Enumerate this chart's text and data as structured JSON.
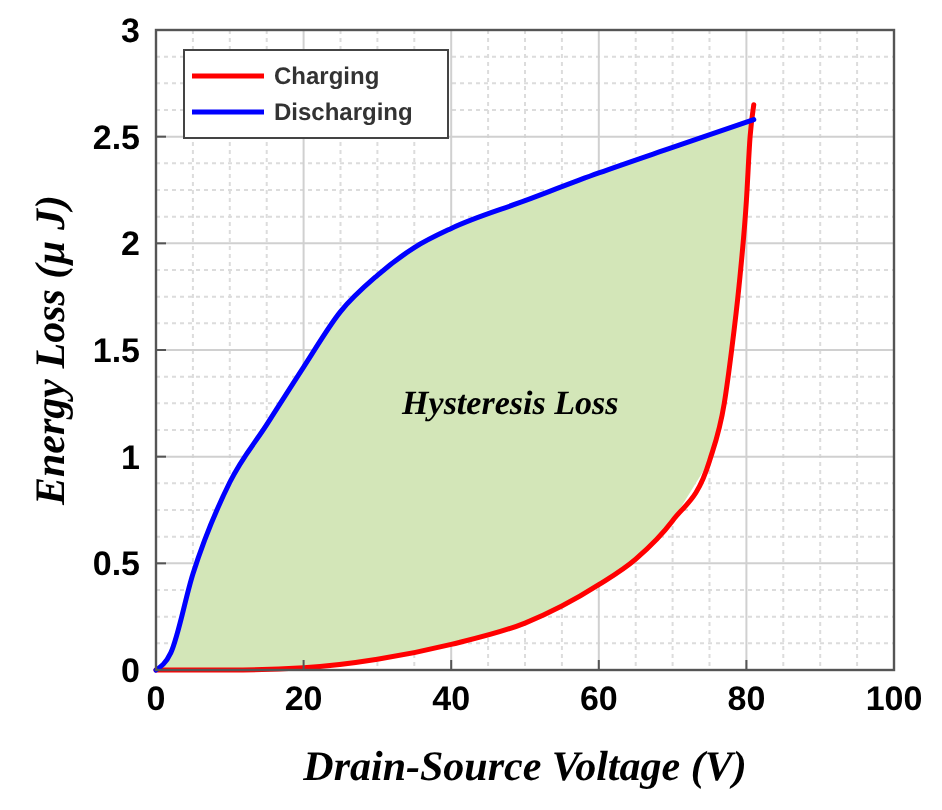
{
  "chart_data": {
    "type": "line",
    "xlabel": "Drain-Source Voltage (V)",
    "ylabel": "Energy Loss (µ J)",
    "xlim": [
      0,
      100
    ],
    "xticks": [
      0,
      20,
      40,
      60,
      80,
      100
    ],
    "ylim": [
      0,
      3
    ],
    "yticks": [
      0,
      0.5,
      1,
      1.5,
      2,
      2.5,
      3
    ],
    "grid": true,
    "legend": "top left",
    "line_style": "solid",
    "marker": "none",
    "annotations": [
      "Hysteresis Loss"
    ],
    "series": [
      {
        "name": "Charging",
        "color": "#ff0000",
        "x": [
          0,
          10,
          20,
          30,
          40,
          50,
          60,
          65,
          70,
          75,
          77,
          78,
          79,
          80,
          80.5,
          81
        ],
        "values": [
          0,
          0,
          0.01,
          0.05,
          0.12,
          0.22,
          0.4,
          0.52,
          0.7,
          0.98,
          1.25,
          1.5,
          1.8,
          2.2,
          2.5,
          2.65
        ]
      },
      {
        "name": "Discharging",
        "color": "#0000ff",
        "x": [
          0,
          2,
          5,
          10,
          15,
          20,
          25,
          30,
          35,
          40,
          50,
          60,
          70,
          81
        ],
        "values": [
          0,
          0.08,
          0.45,
          0.88,
          1.15,
          1.42,
          1.68,
          1.85,
          1.98,
          2.07,
          2.2,
          2.33,
          2.45,
          2.58
        ]
      }
    ]
  }
}
